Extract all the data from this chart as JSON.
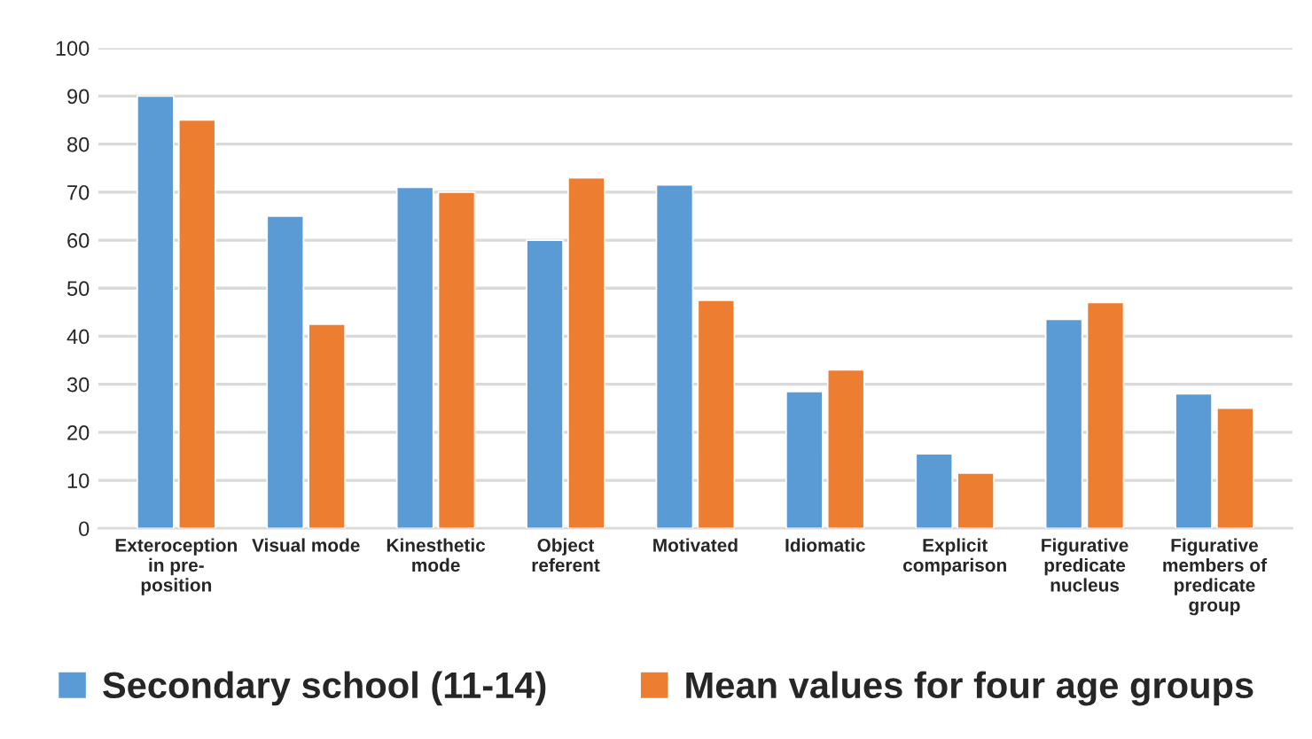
{
  "chart_data": {
    "type": "bar",
    "categories": [
      "Exteroception\nin pre-\nposition",
      "Visual mode",
      "Kinesthetic\nmode",
      "Object\nreferent",
      "Motivated",
      "Idiomatic",
      "Explicit\ncomparison",
      "Figurative\npredicate\nnucleus",
      "Figurative\nmembers of\npredicate\ngroup"
    ],
    "series": [
      {
        "name": "Secondary school (11-14)",
        "color": "#5b9bd5",
        "values": [
          90,
          65,
          71,
          60,
          71.5,
          28.5,
          15.5,
          43.5,
          28
        ]
      },
      {
        "name": "Mean values for four age groups",
        "color": "#ed7d31",
        "values": [
          85,
          42.5,
          70,
          73,
          47.5,
          33,
          11.5,
          47,
          25
        ]
      }
    ],
    "ylim": [
      0,
      100
    ],
    "yticks": [
      0,
      10,
      20,
      30,
      40,
      50,
      60,
      70,
      80,
      90,
      100
    ],
    "grid": "y",
    "legend": "bottom"
  }
}
